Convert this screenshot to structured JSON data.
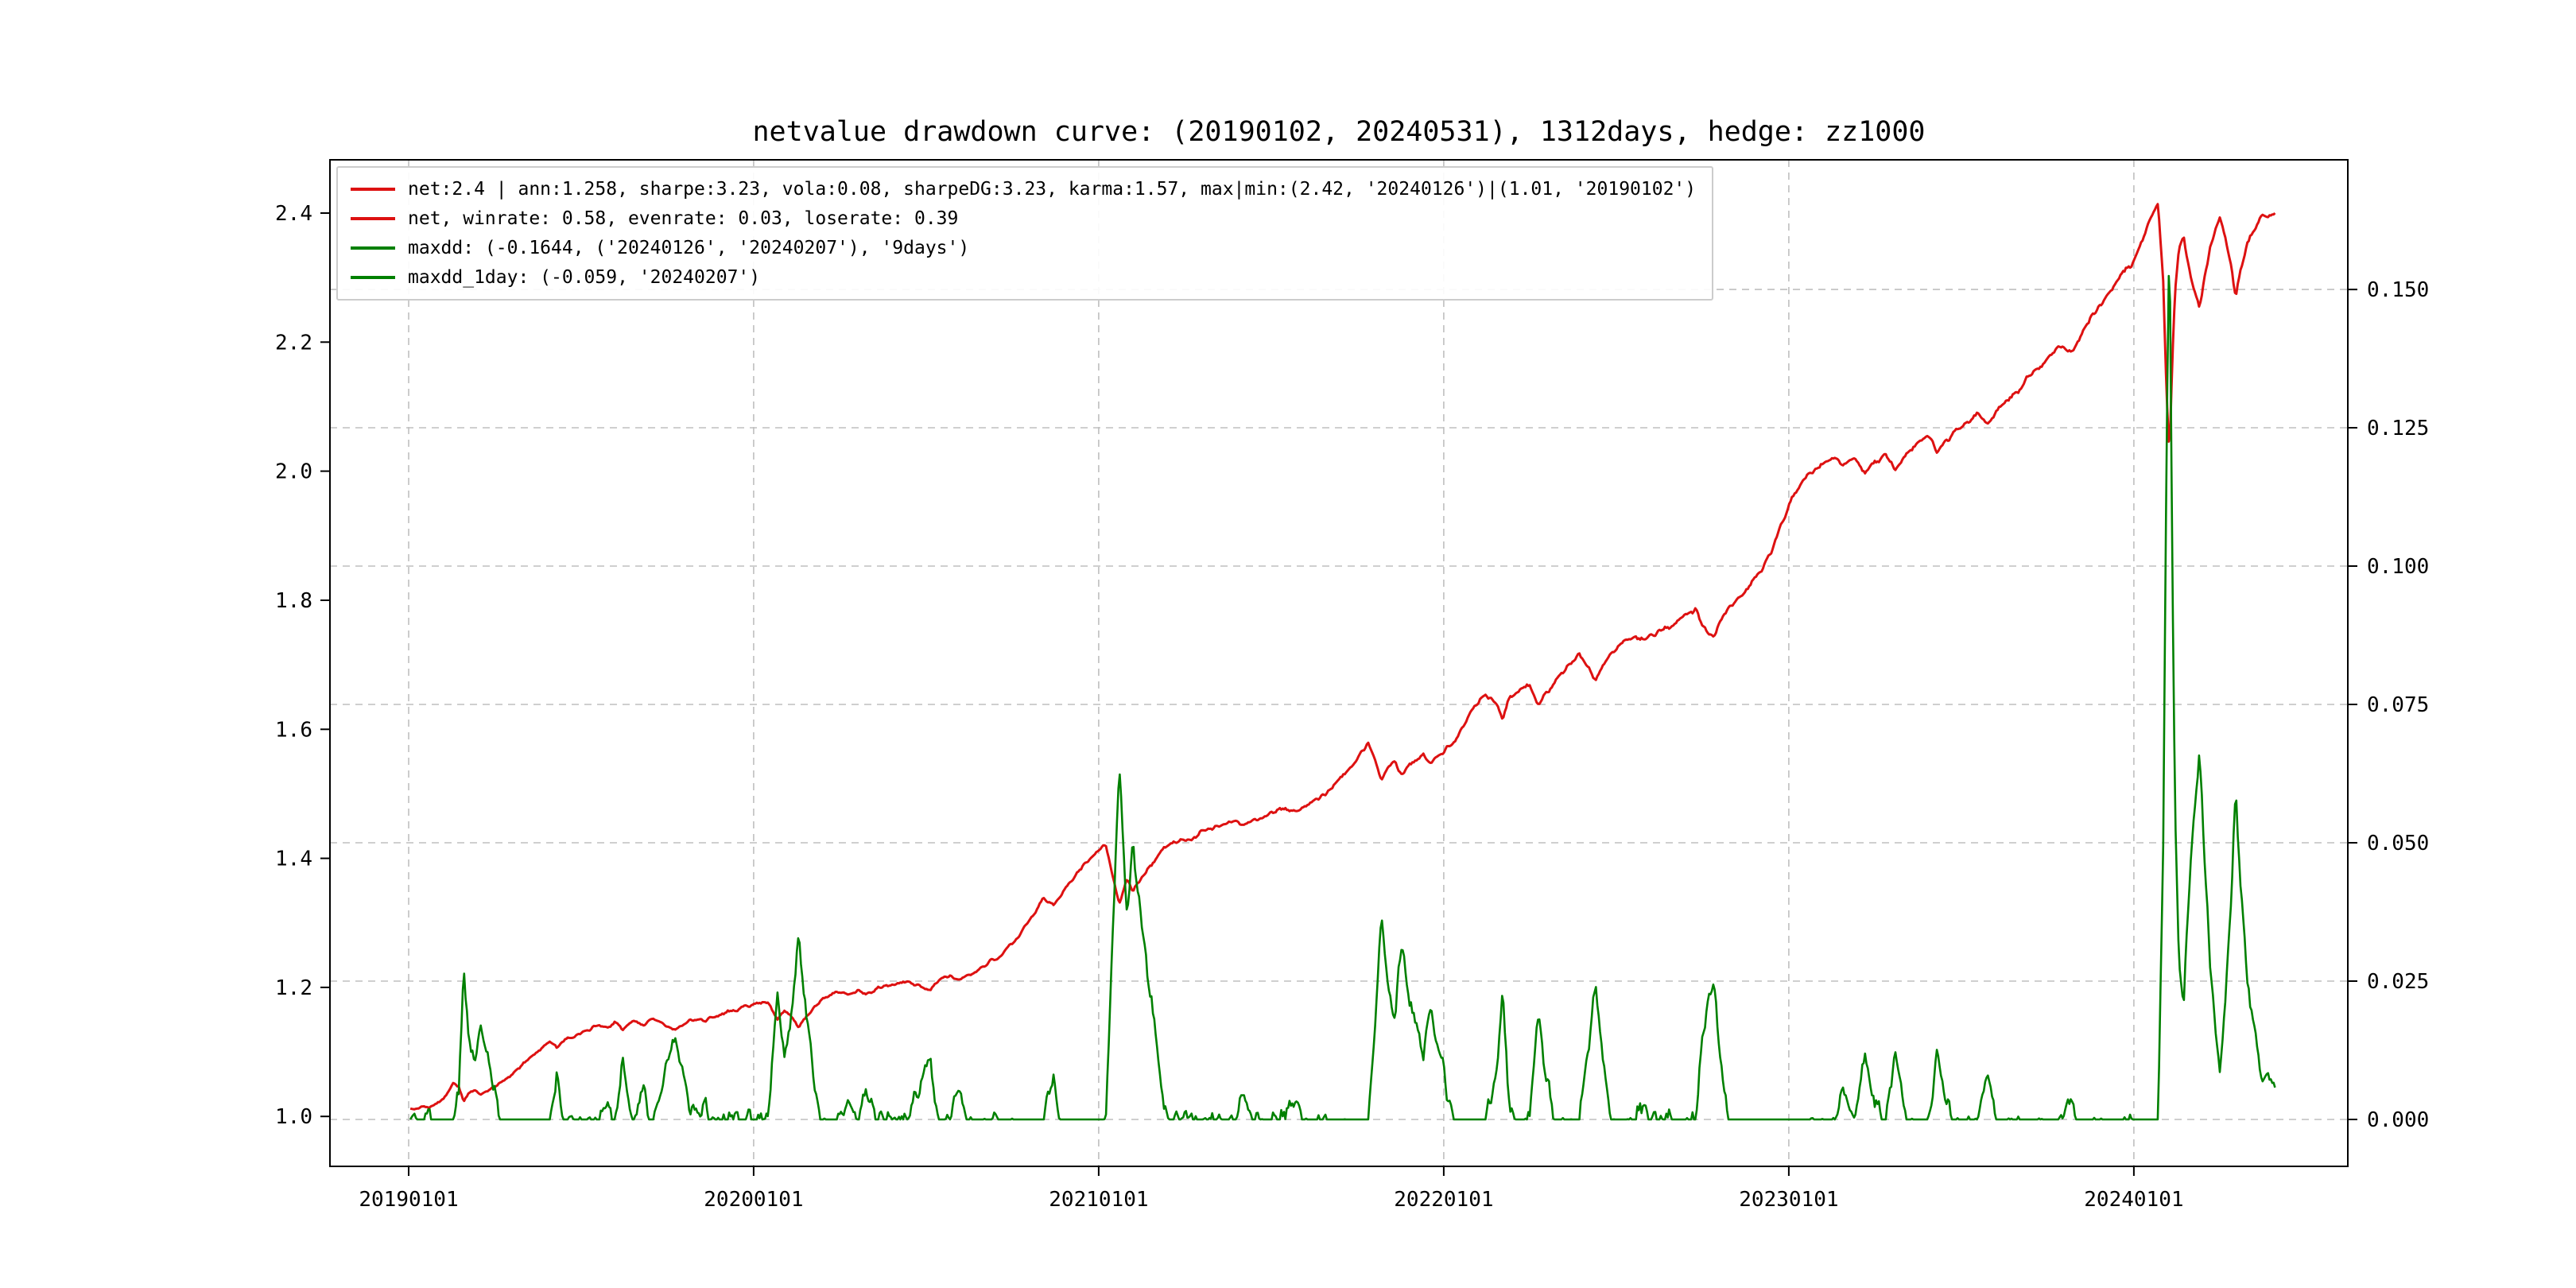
{
  "title": "netvalue drawdown curve: (20190102, 20240531), 1312days, hedge: zz1000",
  "legend": [
    {
      "label": "net:2.4 | ann:1.258, sharpe:3.23, vola:0.08, sharpeDG:3.23, karma:1.57, max|min:(2.42, '20240126')|(1.01, '20190102')",
      "color": "#dd1111"
    },
    {
      "label": "net, winrate: 0.58, evenrate: 0.03, loserate: 0.39",
      "color": "#dd1111"
    },
    {
      "label": "maxdd: (-0.1644, ('20240126', '20240207'), '9days')",
      "color": "#008000"
    },
    {
      "label": "maxdd_1day: (-0.059, '20240207')",
      "color": "#008000"
    }
  ],
  "chart_data": {
    "type": "line",
    "title": "netvalue drawdown curve: (20190102, 20240531), 1312days, hedge: zz1000",
    "grid": "dashed, both axes, from right-axis and year ticks",
    "legend_position": "upper left",
    "style": {
      "grid_color": "#bfbfbf",
      "background": "#ffffff",
      "net_color": "#dd1111",
      "drawdown_color": "#008000"
    },
    "stats": {
      "net": 2.4,
      "ann": 1.258,
      "sharpe": 3.23,
      "vola": 0.08,
      "sharpeDG": 3.23,
      "karma": 1.57,
      "max": [
        2.42,
        "20240126"
      ],
      "min": [
        1.01,
        "20190102"
      ],
      "winrate": 0.58,
      "evenrate": 0.03,
      "loserate": 0.39,
      "maxdd": {
        "value": -0.1644,
        "from": "20240126",
        "to": "20240207",
        "duration": "9days"
      },
      "maxdd_1day": {
        "value": -0.059,
        "date": "20240207"
      },
      "period": [
        "20190102",
        "20240531"
      ],
      "days": 1312,
      "hedge": "zz1000"
    },
    "x_axis": {
      "tick_labels": [
        "20190101",
        "20200101",
        "20210101",
        "20220101",
        "20230101",
        "20240101"
      ],
      "tick_values": [
        2019,
        2020,
        2021,
        2022,
        2023,
        2024
      ],
      "range": [
        2018.772,
        2024.62
      ]
    },
    "left_y_axis": {
      "tick_labels": [
        "1.0",
        "1.2",
        "1.4",
        "1.6",
        "1.8",
        "2.0",
        "2.2",
        "2.4"
      ],
      "tick_values": [
        1.0,
        1.2,
        1.4,
        1.6,
        1.8,
        2.0,
        2.2,
        2.4
      ],
      "range": [
        0.9226,
        2.4826
      ]
    },
    "right_y_axis": {
      "tick_labels": [
        "0.000",
        "0.025",
        "0.050",
        "0.075",
        "0.100",
        "0.125",
        "0.150"
      ],
      "tick_values": [
        0.0,
        0.025,
        0.05,
        0.075,
        0.1,
        0.125,
        0.15
      ],
      "range": [
        -0.00848,
        0.17343
      ]
    },
    "series": [
      {
        "name": "net",
        "axis": "left",
        "color": "#dd1111",
        "points_are": "anchor estimates read from plot; daily values interpolated",
        "points": [
          [
            2019.005,
            1.01
          ],
          [
            2019.03,
            1.013
          ],
          [
            2019.06,
            1.016
          ],
          [
            2019.09,
            1.022
          ],
          [
            2019.11,
            1.035
          ],
          [
            2019.13,
            1.05
          ],
          [
            2019.145,
            1.046
          ],
          [
            2019.16,
            1.025
          ],
          [
            2019.175,
            1.036
          ],
          [
            2019.19,
            1.04
          ],
          [
            2019.21,
            1.034
          ],
          [
            2019.24,
            1.042
          ],
          [
            2019.27,
            1.052
          ],
          [
            2019.3,
            1.065
          ],
          [
            2019.33,
            1.082
          ],
          [
            2019.36,
            1.096
          ],
          [
            2019.39,
            1.108
          ],
          [
            2019.41,
            1.118
          ],
          [
            2019.43,
            1.106
          ],
          [
            2019.46,
            1.12
          ],
          [
            2019.49,
            1.128
          ],
          [
            2019.52,
            1.133
          ],
          [
            2019.55,
            1.143
          ],
          [
            2019.58,
            1.138
          ],
          [
            2019.6,
            1.145
          ],
          [
            2019.62,
            1.136
          ],
          [
            2019.65,
            1.146
          ],
          [
            2019.68,
            1.143
          ],
          [
            2019.71,
            1.15
          ],
          [
            2019.74,
            1.142
          ],
          [
            2019.77,
            1.133
          ],
          [
            2019.8,
            1.145
          ],
          [
            2019.83,
            1.15
          ],
          [
            2019.86,
            1.148
          ],
          [
            2019.89,
            1.155
          ],
          [
            2019.92,
            1.16
          ],
          [
            2019.95,
            1.166
          ],
          [
            2019.98,
            1.172
          ],
          [
            2020.01,
            1.176
          ],
          [
            2020.04,
            1.178
          ],
          [
            2020.07,
            1.152
          ],
          [
            2020.09,
            1.163
          ],
          [
            2020.11,
            1.155
          ],
          [
            2020.13,
            1.137
          ],
          [
            2020.155,
            1.158
          ],
          [
            2020.18,
            1.172
          ],
          [
            2020.21,
            1.186
          ],
          [
            2020.24,
            1.193
          ],
          [
            2020.27,
            1.19
          ],
          [
            2020.3,
            1.196
          ],
          [
            2020.33,
            1.188
          ],
          [
            2020.36,
            1.198
          ],
          [
            2020.39,
            1.203
          ],
          [
            2020.42,
            1.206
          ],
          [
            2020.45,
            1.21
          ],
          [
            2020.48,
            1.203
          ],
          [
            2020.51,
            1.196
          ],
          [
            2020.54,
            1.212
          ],
          [
            2020.57,
            1.218
          ],
          [
            2020.6,
            1.214
          ],
          [
            2020.63,
            1.222
          ],
          [
            2020.66,
            1.23
          ],
          [
            2020.69,
            1.242
          ],
          [
            2020.72,
            1.252
          ],
          [
            2020.75,
            1.268
          ],
          [
            2020.78,
            1.288
          ],
          [
            2020.81,
            1.312
          ],
          [
            2020.84,
            1.338
          ],
          [
            2020.87,
            1.33
          ],
          [
            2020.9,
            1.352
          ],
          [
            2020.93,
            1.372
          ],
          [
            2020.96,
            1.392
          ],
          [
            2020.99,
            1.408
          ],
          [
            2021.02,
            1.42
          ],
          [
            2021.04,
            1.372
          ],
          [
            2021.06,
            1.328
          ],
          [
            2021.08,
            1.368
          ],
          [
            2021.1,
            1.352
          ],
          [
            2021.12,
            1.368
          ],
          [
            2021.15,
            1.388
          ],
          [
            2021.18,
            1.41
          ],
          [
            2021.21,
            1.422
          ],
          [
            2021.24,
            1.43
          ],
          [
            2021.27,
            1.426
          ],
          [
            2021.3,
            1.442
          ],
          [
            2021.33,
            1.448
          ],
          [
            2021.36,
            1.452
          ],
          [
            2021.39,
            1.46
          ],
          [
            2021.42,
            1.45
          ],
          [
            2021.45,
            1.458
          ],
          [
            2021.48,
            1.466
          ],
          [
            2021.51,
            1.472
          ],
          [
            2021.54,
            1.478
          ],
          [
            2021.57,
            1.47
          ],
          [
            2021.6,
            1.482
          ],
          [
            2021.63,
            1.492
          ],
          [
            2021.66,
            1.5
          ],
          [
            2021.69,
            1.516
          ],
          [
            2021.72,
            1.536
          ],
          [
            2021.75,
            1.556
          ],
          [
            2021.78,
            1.576
          ],
          [
            2021.8,
            1.552
          ],
          [
            2021.82,
            1.522
          ],
          [
            2021.84,
            1.54
          ],
          [
            2021.86,
            1.548
          ],
          [
            2021.88,
            1.528
          ],
          [
            2021.9,
            1.544
          ],
          [
            2021.92,
            1.552
          ],
          [
            2021.94,
            1.56
          ],
          [
            2021.96,
            1.548
          ],
          [
            2021.98,
            1.556
          ],
          [
            2022.0,
            1.566
          ],
          [
            2022.03,
            1.582
          ],
          [
            2022.06,
            1.608
          ],
          [
            2022.09,
            1.636
          ],
          [
            2022.12,
            1.656
          ],
          [
            2022.15,
            1.64
          ],
          [
            2022.17,
            1.618
          ],
          [
            2022.19,
            1.648
          ],
          [
            2022.22,
            1.662
          ],
          [
            2022.25,
            1.67
          ],
          [
            2022.27,
            1.638
          ],
          [
            2022.3,
            1.658
          ],
          [
            2022.33,
            1.676
          ],
          [
            2022.36,
            1.7
          ],
          [
            2022.39,
            1.718
          ],
          [
            2022.42,
            1.694
          ],
          [
            2022.44,
            1.676
          ],
          [
            2022.46,
            1.7
          ],
          [
            2022.49,
            1.718
          ],
          [
            2022.52,
            1.734
          ],
          [
            2022.55,
            1.742
          ],
          [
            2022.58,
            1.738
          ],
          [
            2022.61,
            1.748
          ],
          [
            2022.64,
            1.756
          ],
          [
            2022.67,
            1.764
          ],
          [
            2022.7,
            1.776
          ],
          [
            2022.73,
            1.786
          ],
          [
            2022.75,
            1.76
          ],
          [
            2022.78,
            1.742
          ],
          [
            2022.8,
            1.768
          ],
          [
            2022.83,
            1.79
          ],
          [
            2022.86,
            1.806
          ],
          [
            2022.89,
            1.824
          ],
          [
            2022.92,
            1.844
          ],
          [
            2022.95,
            1.876
          ],
          [
            2022.98,
            1.92
          ],
          [
            2023.01,
            1.96
          ],
          [
            2023.04,
            1.985
          ],
          [
            2023.07,
            2.0
          ],
          [
            2023.1,
            2.012
          ],
          [
            2023.13,
            2.02
          ],
          [
            2023.16,
            2.008
          ],
          [
            2023.19,
            2.018
          ],
          [
            2023.22,
            1.996
          ],
          [
            2023.25,
            2.014
          ],
          [
            2023.28,
            2.022
          ],
          [
            2023.31,
            2.004
          ],
          [
            2023.34,
            2.026
          ],
          [
            2023.37,
            2.042
          ],
          [
            2023.4,
            2.052
          ],
          [
            2023.43,
            2.034
          ],
          [
            2023.46,
            2.05
          ],
          [
            2023.49,
            2.062
          ],
          [
            2023.52,
            2.075
          ],
          [
            2023.55,
            2.09
          ],
          [
            2023.58,
            2.078
          ],
          [
            2023.61,
            2.098
          ],
          [
            2023.64,
            2.114
          ],
          [
            2023.67,
            2.128
          ],
          [
            2023.7,
            2.148
          ],
          [
            2023.73,
            2.162
          ],
          [
            2023.76,
            2.178
          ],
          [
            2023.79,
            2.196
          ],
          [
            2023.82,
            2.184
          ],
          [
            2023.85,
            2.215
          ],
          [
            2023.88,
            2.24
          ],
          [
            2023.91,
            2.262
          ],
          [
            2023.94,
            2.284
          ],
          [
            2023.97,
            2.306
          ],
          [
            2024.0,
            2.33
          ],
          [
            2024.02,
            2.352
          ],
          [
            2024.04,
            2.378
          ],
          [
            2024.06,
            2.405
          ],
          [
            2024.07,
            2.42
          ],
          [
            2024.085,
            2.3
          ],
          [
            2024.095,
            2.12
          ],
          [
            2024.103,
            2.022
          ],
          [
            2024.112,
            2.18
          ],
          [
            2024.12,
            2.28
          ],
          [
            2024.13,
            2.348
          ],
          [
            2024.145,
            2.36
          ],
          [
            2024.16,
            2.312
          ],
          [
            2024.175,
            2.282
          ],
          [
            2024.19,
            2.252
          ],
          [
            2024.205,
            2.3
          ],
          [
            2024.22,
            2.344
          ],
          [
            2024.235,
            2.372
          ],
          [
            2024.25,
            2.39
          ],
          [
            2024.265,
            2.356
          ],
          [
            2024.28,
            2.322
          ],
          [
            2024.295,
            2.268
          ],
          [
            2024.31,
            2.31
          ],
          [
            2024.325,
            2.348
          ],
          [
            2024.34,
            2.366
          ],
          [
            2024.355,
            2.382
          ],
          [
            2024.37,
            2.39
          ],
          [
            2024.385,
            2.396
          ],
          [
            2024.4,
            2.4
          ],
          [
            2024.41,
            2.398
          ]
        ]
      },
      {
        "name": "drawdown",
        "axis": "right",
        "color": "#008000",
        "derived": "drawdown_of_net",
        "key_points": [
          [
            2019.16,
            0.024
          ],
          [
            2020.07,
            0.022
          ],
          [
            2020.13,
            0.035
          ],
          [
            2021.06,
            0.065
          ],
          [
            2021.1,
            0.048
          ],
          [
            2021.82,
            0.034
          ],
          [
            2021.88,
            0.03
          ],
          [
            2022.17,
            0.023
          ],
          [
            2022.27,
            0.019
          ],
          [
            2022.44,
            0.024
          ],
          [
            2022.78,
            0.025
          ],
          [
            2023.22,
            0.012
          ],
          [
            2024.103,
            0.1644
          ],
          [
            2024.19,
            0.07
          ],
          [
            2024.295,
            0.063
          ],
          [
            2024.41,
            0.009
          ]
        ]
      }
    ]
  }
}
